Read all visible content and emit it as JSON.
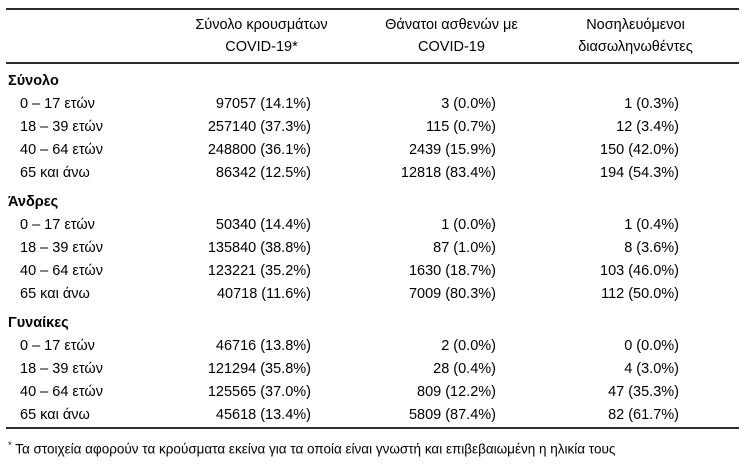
{
  "table": {
    "headers": {
      "cases": "Σύνολο κρουσμάτων\nCOVID-19*",
      "deaths": "Θάνατοι ασθενών με\nCOVID-19",
      "intubated": "Νοσηλευόμενοι\nδιασωληνωθέντες"
    },
    "sections": [
      {
        "label": "Σύνολο",
        "rows": [
          {
            "label": "0 – 17 ετών",
            "cases": "97057 (14.1%)",
            "deaths": "3 (0.0%)",
            "intubated": "1 (0.3%)"
          },
          {
            "label": "18 – 39 ετών",
            "cases": "257140 (37.3%)",
            "deaths": "115 (0.7%)",
            "intubated": "12 (3.4%)"
          },
          {
            "label": "40 – 64 ετών",
            "cases": "248800 (36.1%)",
            "deaths": "2439 (15.9%)",
            "intubated": "150 (42.0%)"
          },
          {
            "label": "65 και άνω",
            "cases": "86342 (12.5%)",
            "deaths": "12818 (83.4%)",
            "intubated": "194 (54.3%)"
          }
        ]
      },
      {
        "label": "Άνδρες",
        "rows": [
          {
            "label": "0 – 17 ετών",
            "cases": "50340 (14.4%)",
            "deaths": "1 (0.0%)",
            "intubated": "1 (0.4%)"
          },
          {
            "label": "18 – 39 ετών",
            "cases": "135840 (38.8%)",
            "deaths": "87 (1.0%)",
            "intubated": "8 (3.6%)"
          },
          {
            "label": "40 – 64 ετών",
            "cases": "123221 (35.2%)",
            "deaths": "1630 (18.7%)",
            "intubated": "103 (46.0%)"
          },
          {
            "label": "65 και άνω",
            "cases": "40718 (11.6%)",
            "deaths": "7009 (80.3%)",
            "intubated": "112 (50.0%)"
          }
        ]
      },
      {
        "label": "Γυναίκες",
        "rows": [
          {
            "label": "0 – 17 ετών",
            "cases": "46716 (13.8%)",
            "deaths": "2 (0.0%)",
            "intubated": "0 (0.0%)"
          },
          {
            "label": "18 – 39 ετών",
            "cases": "121294 (35.8%)",
            "deaths": "28 (0.4%)",
            "intubated": "4 (3.0%)"
          },
          {
            "label": "40 – 64 ετών",
            "cases": "125565 (37.0%)",
            "deaths": "809 (12.2%)",
            "intubated": "47 (35.3%)"
          },
          {
            "label": "65 και άνω",
            "cases": "45618 (13.4%)",
            "deaths": "5809 (87.4%)",
            "intubated": "82 (61.7%)"
          }
        ]
      }
    ],
    "footnote": {
      "marker": "*",
      "text": " Τα στοιχεία αφορούν τα κρούσματα εκείνα για τα οποία είναι γνωστή και επιβεβαιωμένη η ηλικία τους"
    }
  }
}
